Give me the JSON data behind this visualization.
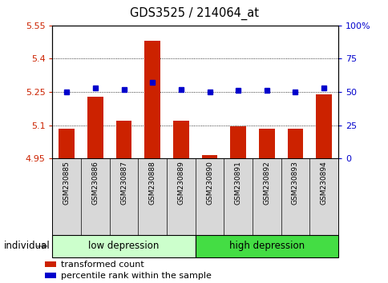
{
  "title": "GDS3525 / 214064_at",
  "samples": [
    "GSM230885",
    "GSM230886",
    "GSM230887",
    "GSM230888",
    "GSM230889",
    "GSM230890",
    "GSM230891",
    "GSM230892",
    "GSM230893",
    "GSM230894"
  ],
  "bar_values": [
    5.085,
    5.23,
    5.12,
    5.48,
    5.12,
    4.965,
    5.095,
    5.085,
    5.085,
    5.24
  ],
  "dot_values": [
    50,
    53,
    52,
    57,
    52,
    50,
    51,
    51,
    50,
    53
  ],
  "ylim_left": [
    4.95,
    5.55
  ],
  "ylim_right": [
    0,
    100
  ],
  "yticks_left": [
    4.95,
    5.1,
    5.25,
    5.4,
    5.55
  ],
  "ytick_labels_left": [
    "4.95",
    "5.1",
    "5.25",
    "5.4",
    "5.55"
  ],
  "yticks_right": [
    0,
    25,
    50,
    75,
    100
  ],
  "ytick_labels_right": [
    "0",
    "25",
    "50",
    "75",
    "100%"
  ],
  "bar_color": "#cc2200",
  "dot_color": "#0000cc",
  "n_low": 5,
  "n_high": 5,
  "group_low_label": "low depression",
  "group_high_label": "high depression",
  "group_low_color": "#ccffcc",
  "group_high_color": "#44dd44",
  "individual_label": "individual",
  "legend_bar_label": "transformed count",
  "legend_dot_label": "percentile rank within the sample",
  "bar_width": 0.55,
  "base_value": 4.95
}
